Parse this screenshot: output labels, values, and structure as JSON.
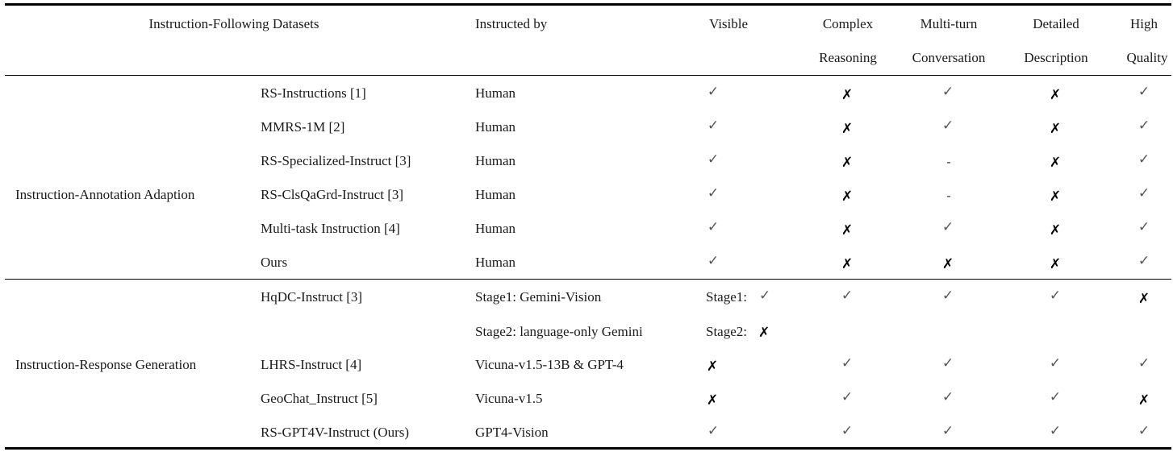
{
  "headers": {
    "datasets": "Instruction-Following Datasets",
    "instructed_by": "Instructed by",
    "visible": "Visible",
    "complex_1": "Complex",
    "complex_2": "Reasoning",
    "multiturn_1": "Multi-turn",
    "multiturn_2": "Conversation",
    "detailed_1": "Detailed",
    "detailed_2": "Description",
    "quality_1": "High",
    "quality_2": "Quality"
  },
  "symbols": {
    "check": "✓",
    "cross": "✗",
    "dash": "-"
  },
  "groups": [
    {
      "name": "Instruction-Annotation Adaption"
    },
    {
      "name": "Instruction-Response Generation"
    }
  ],
  "rows": [
    {
      "dataset": "RS-Instructions [1]",
      "by": "Human",
      "visible": "✓",
      "complex": "✗",
      "multiturn": "✓",
      "detailed": "✗",
      "quality": "✓"
    },
    {
      "dataset": "MMRS-1M [2]",
      "by": "Human",
      "visible": "✓",
      "complex": "✗",
      "multiturn": "✓",
      "detailed": "✗",
      "quality": "✓"
    },
    {
      "dataset": "RS-Specialized-Instruct [3]",
      "by": "Human",
      "visible": "✓",
      "complex": "✗",
      "multiturn": "-",
      "detailed": "✗",
      "quality": "✓"
    },
    {
      "dataset": "RS-ClsQaGrd-Instruct [3]",
      "by": "Human",
      "visible": "✓",
      "complex": "✗",
      "multiturn": "-",
      "detailed": "✗",
      "quality": "✓"
    },
    {
      "dataset": "Multi-task Instruction [4]",
      "by": "Human",
      "visible": "✓",
      "complex": "✗",
      "multiturn": "✓",
      "detailed": "✗",
      "quality": "✓"
    },
    {
      "dataset": "Ours",
      "by": "Human",
      "visible": "✓",
      "complex": "✗",
      "multiturn": "✗",
      "detailed": "✗",
      "quality": "✓"
    },
    {
      "dataset": "HqDC-Instruct [3]",
      "by": "Stage1: Gemini-Vision",
      "visible_label": "Stage1:",
      "visible": "✓",
      "complex": "✓",
      "multiturn": "✓",
      "detailed": "✓",
      "quality": "✗"
    },
    {
      "dataset": "",
      "by": "Stage2: language-only Gemini",
      "visible_label": "Stage2:",
      "visible": "✗"
    },
    {
      "dataset": "LHRS-Instruct [4]",
      "by": "Vicuna-v1.5-13B & GPT-4",
      "visible": "✗",
      "complex": "✓",
      "multiturn": "✓",
      "detailed": "✓",
      "quality": "✓"
    },
    {
      "dataset": "GeoChat_Instruct [5]",
      "by": "Vicuna-v1.5",
      "visible": "✗",
      "complex": "✓",
      "multiturn": "✓",
      "detailed": "✓",
      "quality": "✗"
    },
    {
      "dataset": "RS-GPT4V-Instruct (Ours)",
      "by": "GPT4-Vision",
      "visible": "✓",
      "complex": "✓",
      "multiturn": "✓",
      "detailed": "✓",
      "quality": "✓"
    }
  ]
}
